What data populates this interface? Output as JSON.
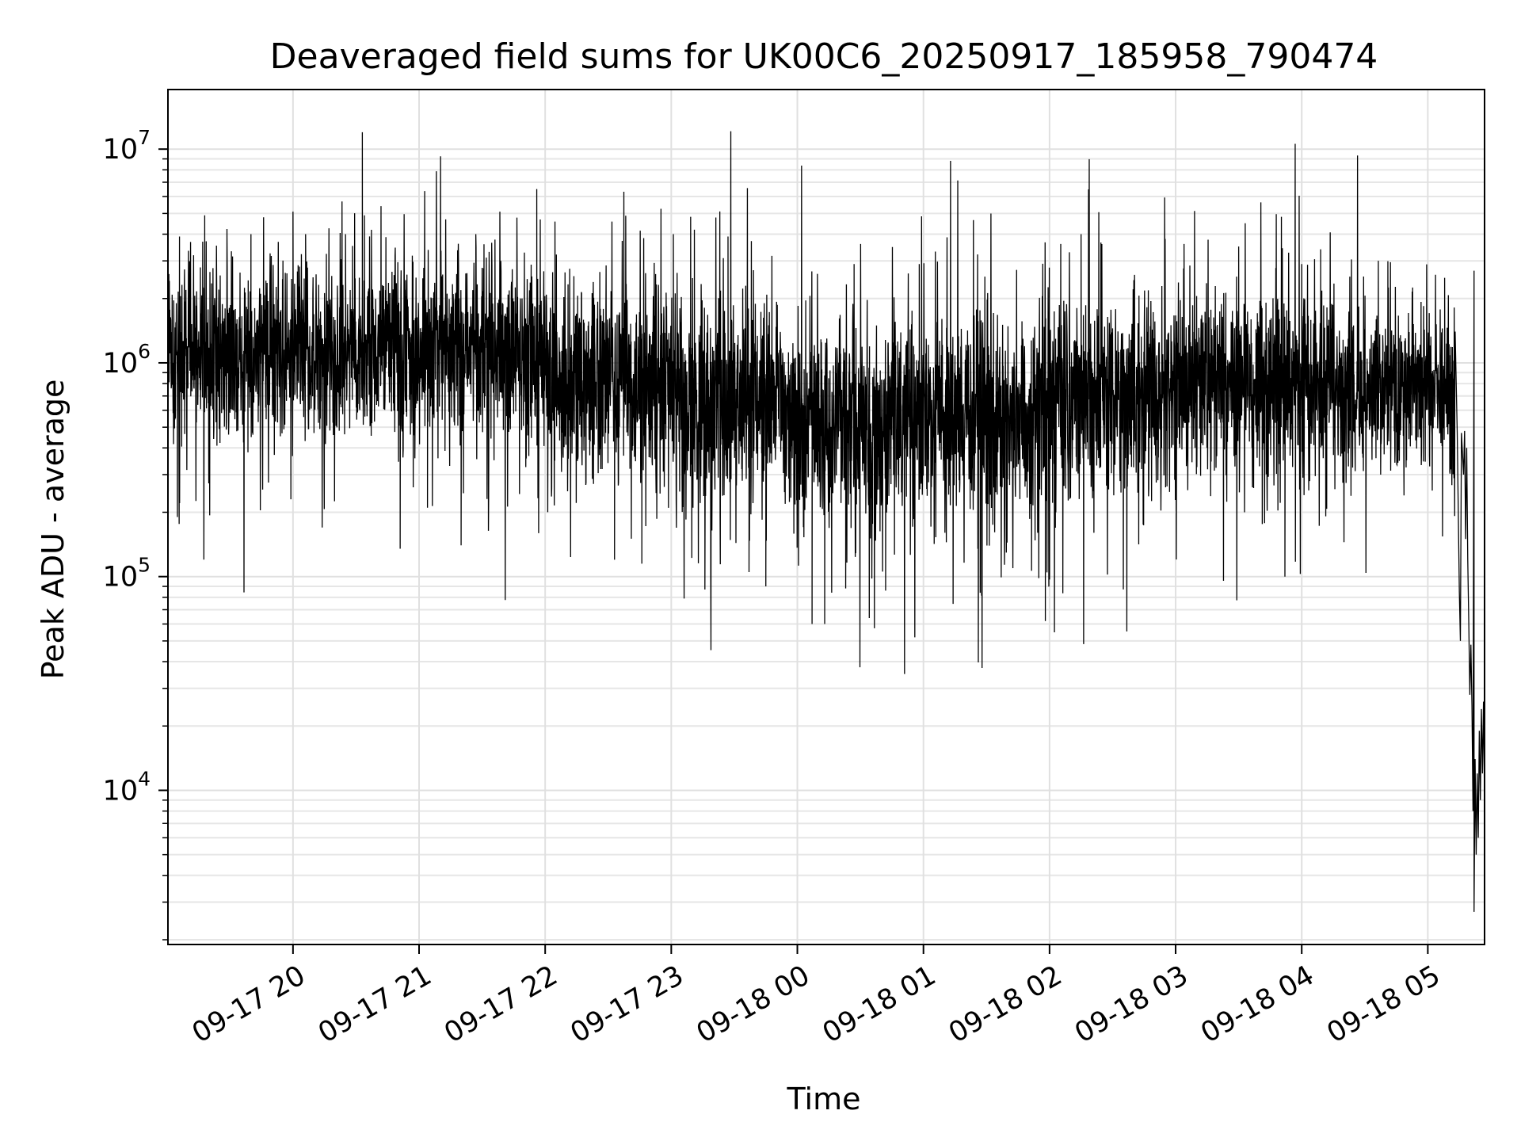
{
  "chart_data": {
    "type": "line",
    "title": "Deaveraged field sums for UK00C6_20250917_185958_790474",
    "xlabel": "Time",
    "ylabel": "Peak ADU - average",
    "y_scale": "log",
    "ylim": [
      1900,
      19000000
    ],
    "xlim": [
      "2025-09-17 19:00:30",
      "2025-09-18 05:27:00"
    ],
    "grid": true,
    "legend": "none",
    "line_color": "#000000",
    "x_ticks": [
      {
        "value": "2025-09-17 20:00",
        "label": "09-17 20"
      },
      {
        "value": "2025-09-17 21:00",
        "label": "09-17 21"
      },
      {
        "value": "2025-09-17 22:00",
        "label": "09-17 22"
      },
      {
        "value": "2025-09-17 23:00",
        "label": "09-17 23"
      },
      {
        "value": "2025-09-18 00:00",
        "label": "09-18 00"
      },
      {
        "value": "2025-09-18 01:00",
        "label": "09-18 01"
      },
      {
        "value": "2025-09-18 02:00",
        "label": "09-18 02"
      },
      {
        "value": "2025-09-18 03:00",
        "label": "09-18 03"
      },
      {
        "value": "2025-09-18 04:00",
        "label": "09-18 04"
      },
      {
        "value": "2025-09-18 05:00",
        "label": "09-18 05"
      }
    ],
    "y_ticks": [
      {
        "value": 10000,
        "base": "10",
        "exp": "4"
      },
      {
        "value": 100000,
        "base": "10",
        "exp": "5"
      },
      {
        "value": 1000000,
        "base": "10",
        "exp": "6"
      },
      {
        "value": 10000000,
        "base": "10",
        "exp": "7"
      }
    ],
    "series": [
      {
        "segments": [
          {
            "start": "2025-09-17 19:00:30",
            "end": "2025-09-17 20:00",
            "level": 1100000,
            "spread": 0.28,
            "spike_rate": 0.07,
            "spike_up": 0.55,
            "spike_down": 0.55
          },
          {
            "start": "2025-09-17 20:00",
            "end": "2025-09-17 21:00",
            "level": 1150000,
            "spread": 0.28,
            "spike_rate": 0.07,
            "spike_up": 0.55,
            "spike_down": 0.55
          },
          {
            "start": "2025-09-17 21:00",
            "end": "2025-09-17 22:00",
            "level": 1100000,
            "spread": 0.28,
            "spike_rate": 0.07,
            "spike_up": 0.55,
            "spike_down": 0.6
          },
          {
            "start": "2025-09-17 22:00",
            "end": "2025-09-17 23:00",
            "level": 850000,
            "spread": 0.32,
            "spike_rate": 0.08,
            "spike_up": 0.6,
            "spike_down": 0.7
          },
          {
            "start": "2025-09-17 23:00",
            "end": "2025-09-18 00:00",
            "level": 650000,
            "spread": 0.34,
            "spike_rate": 0.08,
            "spike_up": 0.65,
            "spike_down": 0.75
          },
          {
            "start": "2025-09-18 00:00",
            "end": "2025-09-18 01:00",
            "level": 520000,
            "spread": 0.34,
            "spike_rate": 0.08,
            "spike_up": 0.65,
            "spike_down": 0.75
          },
          {
            "start": "2025-09-18 01:00",
            "end": "2025-09-18 02:00",
            "level": 560000,
            "spread": 0.34,
            "spike_rate": 0.08,
            "spike_up": 0.65,
            "spike_down": 0.75
          },
          {
            "start": "2025-09-18 02:00",
            "end": "2025-09-18 03:00",
            "level": 680000,
            "spread": 0.32,
            "spike_rate": 0.08,
            "spike_up": 0.6,
            "spike_down": 0.7
          },
          {
            "start": "2025-09-18 03:00",
            "end": "2025-09-18 04:00",
            "level": 800000,
            "spread": 0.3,
            "spike_rate": 0.08,
            "spike_up": 0.55,
            "spike_down": 0.65
          },
          {
            "start": "2025-09-18 04:00",
            "end": "2025-09-18 05:13",
            "level": 750000,
            "spread": 0.27,
            "spike_rate": 0.07,
            "spike_up": 0.45,
            "spike_down": 0.55
          }
        ],
        "spikes": [
          {
            "x": "2025-09-17 19:05",
            "y": 190000
          },
          {
            "x": "2025-09-17 19:06",
            "y": 3900000
          },
          {
            "x": "2025-09-17 19:18",
            "y": 4900000
          },
          {
            "x": "2025-09-17 19:40",
            "y": 4000000
          },
          {
            "x": "2025-09-17 19:59",
            "y": 230000
          },
          {
            "x": "2025-09-17 20:00",
            "y": 5100000
          },
          {
            "x": "2025-09-17 20:06",
            "y": 4000000
          },
          {
            "x": "2025-09-17 20:25",
            "y": 4000000
          },
          {
            "x": "2025-09-17 20:33",
            "y": 12000000
          },
          {
            "x": "2025-09-17 20:34",
            "y": 4900000
          },
          {
            "x": "2025-09-17 20:51",
            "y": 135000
          },
          {
            "x": "2025-09-17 21:04",
            "y": 210000
          },
          {
            "x": "2025-09-17 21:20",
            "y": 140000
          },
          {
            "x": "2025-09-17 21:27",
            "y": 4000000
          },
          {
            "x": "2025-09-17 21:56",
            "y": 6500000
          },
          {
            "x": "2025-09-17 22:33",
            "y": 120000
          },
          {
            "x": "2025-09-17 22:46",
            "y": 115000
          },
          {
            "x": "2025-09-17 23:01",
            "y": 4000000
          },
          {
            "x": "2025-09-17 23:11",
            "y": 4200000
          },
          {
            "x": "2025-09-17 23:16",
            "y": 87000
          },
          {
            "x": "2025-09-17 23:27",
            "y": 3900000
          },
          {
            "x": "2025-09-17 23:37",
            "y": 105000
          },
          {
            "x": "2025-09-17 23:45",
            "y": 90000
          },
          {
            "x": "2025-09-18 00:07",
            "y": 60000
          },
          {
            "x": "2025-09-18 00:13",
            "y": 60000
          },
          {
            "x": "2025-09-18 00:23",
            "y": 88000
          },
          {
            "x": "2025-09-18 00:27",
            "y": 2900000
          },
          {
            "x": "2025-09-18 00:42",
            "y": 86000
          },
          {
            "x": "2025-09-18 00:58",
            "y": 2900000
          },
          {
            "x": "2025-09-18 01:27",
            "y": 84000
          },
          {
            "x": "2025-09-18 01:58",
            "y": 62000
          },
          {
            "x": "2025-09-18 02:15",
            "y": 4000000
          },
          {
            "x": "2025-09-18 02:55",
            "y": 3800000
          },
          {
            "x": "2025-09-18 03:04",
            "y": 3600000
          },
          {
            "x": "2025-09-18 03:30",
            "y": 3500000
          },
          {
            "x": "2025-09-18 03:52",
            "y": 100000
          },
          {
            "x": "2025-09-18 04:00",
            "y": 2900000
          },
          {
            "x": "2025-09-18 04:09",
            "y": 3400000
          },
          {
            "x": "2025-09-18 05:08",
            "y": 2500000
          }
        ],
        "tail": [
          {
            "x": "2025-09-18 05:12",
            "y": 550000
          },
          {
            "x": "2025-09-18 05:13",
            "y": 1400000
          },
          {
            "x": "2025-09-18 05:14",
            "y": 470000
          },
          {
            "x": "2025-09-18 05:15",
            "y": 85000
          },
          {
            "x": "2025-09-18 05:15:30",
            "y": 50000
          },
          {
            "x": "2025-09-18 05:16",
            "y": 470000
          },
          {
            "x": "2025-09-18 05:17",
            "y": 300000
          },
          {
            "x": "2025-09-18 05:17:30",
            "y": 480000
          },
          {
            "x": "2025-09-18 05:18",
            "y": 150000
          },
          {
            "x": "2025-09-18 05:18:30",
            "y": 400000
          },
          {
            "x": "2025-09-18 05:19",
            "y": 120000
          },
          {
            "x": "2025-09-18 05:19:30",
            "y": 60000
          },
          {
            "x": "2025-09-18 05:20",
            "y": 28000
          },
          {
            "x": "2025-09-18 05:20:30",
            "y": 48000
          },
          {
            "x": "2025-09-18 05:21",
            "y": 25000
          },
          {
            "x": "2025-09-18 05:21:30",
            "y": 8000
          },
          {
            "x": "2025-09-18 05:22",
            "y": 2700000
          },
          {
            "x": "2025-09-18 05:22",
            "y": 2700
          },
          {
            "x": "2025-09-18 05:22:30",
            "y": 14000
          },
          {
            "x": "2025-09-18 05:23",
            "y": 5000
          },
          {
            "x": "2025-09-18 05:23:30",
            "y": 12000
          },
          {
            "x": "2025-09-18 05:24",
            "y": 6000
          },
          {
            "x": "2025-09-18 05:24:30",
            "y": 19000
          },
          {
            "x": "2025-09-18 05:25",
            "y": 9000
          },
          {
            "x": "2025-09-18 05:25:30",
            "y": 24000
          },
          {
            "x": "2025-09-18 05:26",
            "y": 12000
          },
          {
            "x": "2025-09-18 05:26:30",
            "y": 26000
          },
          {
            "x": "2025-09-18 05:27",
            "y": 8500
          }
        ]
      }
    ]
  }
}
